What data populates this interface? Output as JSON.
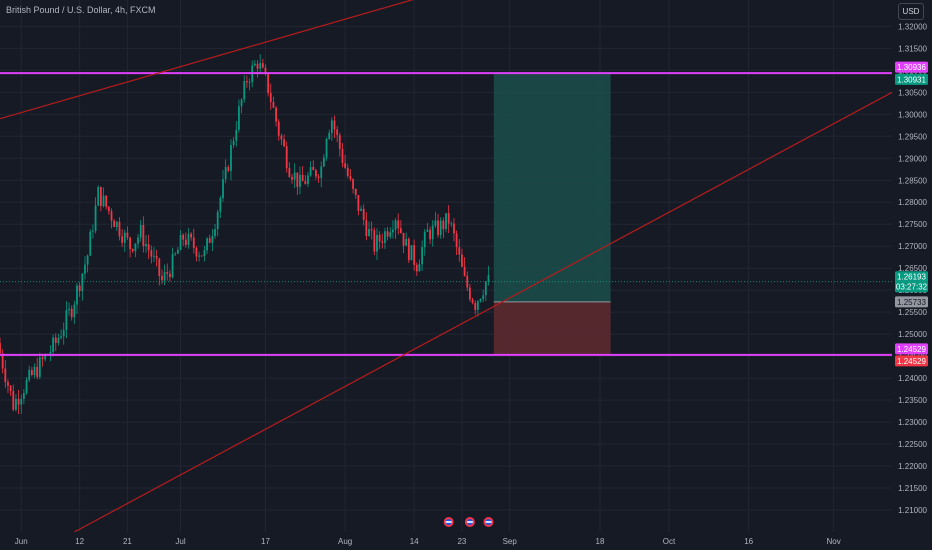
{
  "header": {
    "symbol_title": "British Pound / U.S. Dollar, 4h, FXCM",
    "currency_button": "USD"
  },
  "chart_data": {
    "type": "candlestick",
    "title": "British Pound / U.S. Dollar, 4h, FXCM",
    "ylim": [
      1.205,
      1.326
    ],
    "y_ticks": [
      "1.32000",
      "1.31500",
      "1.31000",
      "1.30500",
      "1.30000",
      "1.29500",
      "1.29000",
      "1.28500",
      "1.28000",
      "1.27500",
      "1.27000",
      "1.26500",
      "1.26000",
      "1.25500",
      "1.25000",
      "1.24500",
      "1.24000",
      "1.23500",
      "1.23000",
      "1.22500",
      "1.22000",
      "1.21500",
      "1.21000"
    ],
    "x_ticks": [
      {
        "label": "Jun",
        "day": 0
      },
      {
        "label": "12",
        "day": 11
      },
      {
        "label": "21",
        "day": 20
      },
      {
        "label": "Jul",
        "day": 30
      },
      {
        "label": "17",
        "day": 46
      },
      {
        "label": "Aug",
        "day": 61
      },
      {
        "label": "14",
        "day": 74
      },
      {
        "label": "23",
        "day": 83
      },
      {
        "label": "Sep",
        "day": 92
      },
      {
        "label": "18",
        "day": 109
      },
      {
        "label": "Oct",
        "day": 122
      },
      {
        "label": "16",
        "day": 137
      },
      {
        "label": "Nov",
        "day": 153
      }
    ],
    "x_range_days": [
      -4,
      164
    ],
    "price_path": [
      {
        "day": -4,
        "price": 1.248
      },
      {
        "day": -1,
        "price": 1.234
      },
      {
        "day": 1,
        "price": 1.238
      },
      {
        "day": 4,
        "price": 1.243
      },
      {
        "day": 7,
        "price": 1.248
      },
      {
        "day": 10,
        "price": 1.256
      },
      {
        "day": 13,
        "price": 1.268
      },
      {
        "day": 15,
        "price": 1.282
      },
      {
        "day": 17,
        "price": 1.278
      },
      {
        "day": 19,
        "price": 1.274
      },
      {
        "day": 21,
        "price": 1.27
      },
      {
        "day": 23,
        "price": 1.273
      },
      {
        "day": 25,
        "price": 1.268
      },
      {
        "day": 27,
        "price": 1.262
      },
      {
        "day": 29,
        "price": 1.266
      },
      {
        "day": 31,
        "price": 1.272
      },
      {
        "day": 33,
        "price": 1.27
      },
      {
        "day": 35,
        "price": 1.268
      },
      {
        "day": 37,
        "price": 1.276
      },
      {
        "day": 39,
        "price": 1.286
      },
      {
        "day": 41,
        "price": 1.298
      },
      {
        "day": 43,
        "price": 1.308
      },
      {
        "day": 45,
        "price": 1.312
      },
      {
        "day": 47,
        "price": 1.306
      },
      {
        "day": 49,
        "price": 1.296
      },
      {
        "day": 51,
        "price": 1.288
      },
      {
        "day": 53,
        "price": 1.284
      },
      {
        "day": 55,
        "price": 1.286
      },
      {
        "day": 57,
        "price": 1.288
      },
      {
        "day": 58,
        "price": 1.296
      },
      {
        "day": 59,
        "price": 1.299
      },
      {
        "day": 61,
        "price": 1.29
      },
      {
        "day": 63,
        "price": 1.282
      },
      {
        "day": 65,
        "price": 1.276
      },
      {
        "day": 67,
        "price": 1.27
      },
      {
        "day": 69,
        "price": 1.273
      },
      {
        "day": 71,
        "price": 1.277
      },
      {
        "day": 73,
        "price": 1.27
      },
      {
        "day": 75,
        "price": 1.266
      },
      {
        "day": 77,
        "price": 1.273
      },
      {
        "day": 79,
        "price": 1.274
      },
      {
        "day": 81,
        "price": 1.276
      },
      {
        "day": 82,
        "price": 1.272
      },
      {
        "day": 84,
        "price": 1.262
      },
      {
        "day": 86,
        "price": 1.257
      },
      {
        "day": 88,
        "price": 1.2619
      }
    ],
    "horizontal_levels": [
      {
        "price": 1.30936,
        "color": "#e040fb",
        "label": "1.30936"
      },
      {
        "price": 1.24529,
        "color": "#e040fb",
        "label": "1.24529"
      }
    ],
    "trend_lines": [
      {
        "from": {
          "day": -4,
          "price": 1.299
        },
        "to": {
          "day": 85,
          "price": 1.33
        },
        "color": "#b71c1c"
      },
      {
        "from": {
          "day": 10,
          "price": 1.205
        },
        "to": {
          "day": 164,
          "price": 1.305
        },
        "color": "#b71c1c"
      }
    ],
    "position": {
      "start_day": 89,
      "end_day": 111,
      "target": 1.30931,
      "entry": 1.25733,
      "stop": 1.24529,
      "profit_color": "#1b4d4a",
      "loss_color": "#5b2a2f"
    },
    "price_tags": [
      {
        "price": 1.30936,
        "text": "1.30936",
        "bg": "#e040fb",
        "fg": "#ffffff",
        "offset": -6
      },
      {
        "price": 1.30931,
        "text": "1.30931",
        "bg": "#089981",
        "fg": "#ffffff",
        "offset": 6
      },
      {
        "price": 1.26193,
        "text": "1.26193",
        "bg": "#089981",
        "fg": "#ffffff",
        "offset": -5
      },
      {
        "price": 1.26193,
        "text": "03:27:32",
        "bg": "#089981",
        "fg": "#ffffff",
        "offset": 5
      },
      {
        "price": 1.25733,
        "text": "1.25733",
        "bg": "#9598a1",
        "fg": "#131722",
        "offset": 0
      },
      {
        "price": 1.24529,
        "text": "1.24529",
        "bg": "#e040fb",
        "fg": "#ffffff",
        "offset": -6
      },
      {
        "price": 1.24529,
        "text": "1.24529",
        "bg": "#f23645",
        "fg": "#ffffff",
        "offset": 6
      }
    ],
    "current_price": 1.26193
  }
}
